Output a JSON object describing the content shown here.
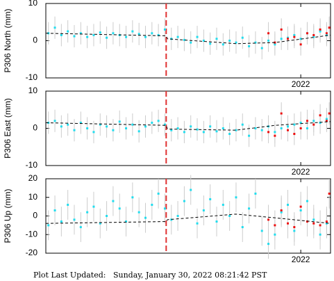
{
  "chart_data": [
    {
      "type": "scatter",
      "ylabel": "P306 North (mm)",
      "xlim": [
        2020.03,
        2022.23
      ],
      "xticks": [
        2022
      ],
      "ylim": [
        -10,
        10
      ],
      "yticks": [
        10,
        0,
        -10
      ],
      "vlines": [
        {
          "x": 2020.96,
          "color": "#e03030"
        }
      ],
      "series": [
        {
          "color": "#22ddee",
          "error": 3,
          "x": [
            2020.05,
            2020.1,
            2020.15,
            2020.2,
            2020.25,
            2020.3,
            2020.35,
            2020.4,
            2020.45,
            2020.5,
            2020.55,
            2020.6,
            2020.65,
            2020.7,
            2020.75,
            2020.8,
            2020.85,
            2020.9,
            2020.95,
            2021.0,
            2021.05,
            2021.1,
            2021.15,
            2021.2,
            2021.25,
            2021.3,
            2021.35,
            2021.4,
            2021.45,
            2021.5,
            2021.55,
            2021.6,
            2021.65,
            2021.7,
            2021.75,
            2021.8,
            2021.85,
            2021.9,
            2021.95,
            2022.0,
            2022.05,
            2022.1,
            2022.15,
            2022.2
          ],
          "values": [
            2,
            3.5,
            1.5,
            2.5,
            1.2,
            2,
            1,
            1.5,
            2.2,
            0.8,
            2,
            1.5,
            1,
            2.5,
            1.8,
            1,
            2,
            1.5,
            3,
            0.5,
            1,
            0.2,
            -0.5,
            1,
            0,
            -0.8,
            0.5,
            -1,
            0,
            -0.5,
            0.8,
            -1.5,
            -0.5,
            -2,
            0,
            -1,
            0.5,
            0.8,
            1.5,
            0.5,
            2,
            1,
            2.5,
            1.5
          ]
        },
        {
          "color": "#ee1111",
          "error": 3,
          "x": [
            2021.75,
            2021.8,
            2021.85,
            2021.9,
            2021.95,
            2022.0,
            2022.05,
            2022.1,
            2022.15,
            2022.2,
            2022.22
          ],
          "values": [
            2,
            -0.5,
            3,
            0.5,
            1,
            -1,
            2,
            1.5,
            3,
            2,
            3.5
          ]
        },
        {
          "color": "#000000",
          "style": "dashed",
          "x": [
            2020.03,
            2020.96,
            2020.97,
            2021.5,
            2021.8,
            2022.23
          ],
          "values": [
            2,
            1.3,
            0.5,
            -0.8,
            -0.5,
            1.5
          ]
        }
      ]
    },
    {
      "type": "scatter",
      "ylabel": "P306 East (mm)",
      "xlim": [
        2020.03,
        2022.23
      ],
      "xticks": [
        2022
      ],
      "ylim": [
        -10,
        10
      ],
      "yticks": [
        10,
        0,
        -10
      ],
      "vlines": [
        {
          "x": 2020.96,
          "color": "#e03030"
        }
      ],
      "series": [
        {
          "color": "#22ddee",
          "error": 3,
          "x": [
            2020.05,
            2020.1,
            2020.15,
            2020.2,
            2020.25,
            2020.3,
            2020.35,
            2020.4,
            2020.45,
            2020.5,
            2020.55,
            2020.6,
            2020.65,
            2020.7,
            2020.75,
            2020.8,
            2020.85,
            2020.9,
            2020.95,
            2021.0,
            2021.05,
            2021.1,
            2021.15,
            2021.2,
            2021.25,
            2021.3,
            2021.35,
            2021.4,
            2021.45,
            2021.5,
            2021.55,
            2021.6,
            2021.65,
            2021.7,
            2021.75,
            2021.8,
            2021.85,
            2021.9,
            2021.95,
            2022.0,
            2022.05,
            2022.1,
            2022.15,
            2022.2
          ],
          "values": [
            1.5,
            2,
            0.5,
            1,
            -0.5,
            1.5,
            0,
            -1,
            1,
            0.5,
            -0.5,
            1.8,
            0,
            1,
            -0.8,
            0.5,
            1.5,
            2,
            1,
            -0.5,
            0,
            -1,
            0.5,
            -0.3,
            -1,
            0.5,
            -0.8,
            0,
            -1.5,
            -0.5,
            1,
            -2,
            0,
            -0.5,
            0.5,
            -1,
            0,
            0.5,
            1,
            1.5,
            0,
            2,
            1.5,
            2.5
          ]
        },
        {
          "color": "#ee1111",
          "error": 3,
          "x": [
            2021.75,
            2021.8,
            2021.85,
            2021.9,
            2021.95,
            2022.0,
            2022.05,
            2022.1,
            2022.15,
            2022.2,
            2022.22
          ],
          "values": [
            -1,
            -2,
            4,
            -0.5,
            -1.5,
            0,
            2,
            1,
            3.5,
            2,
            4
          ]
        },
        {
          "color": "#000000",
          "style": "dashed",
          "x": [
            2020.03,
            2020.96,
            2020.97,
            2021.5,
            2021.8,
            2022.23
          ],
          "values": [
            1.5,
            0.8,
            -0.2,
            -0.5,
            0.8,
            1.8
          ]
        }
      ]
    },
    {
      "type": "scatter",
      "ylabel": "P306 Up (mm)",
      "xlim": [
        2020.03,
        2022.23
      ],
      "xticks": [
        2022
      ],
      "ylim": [
        -20,
        20
      ],
      "yticks": [
        20,
        10,
        0,
        -10,
        -20
      ],
      "vlines": [
        {
          "x": 2020.96,
          "color": "#e03030"
        }
      ],
      "series": [
        {
          "color": "#22ddee",
          "error": 8,
          "x": [
            2020.05,
            2020.1,
            2020.15,
            2020.2,
            2020.25,
            2020.3,
            2020.35,
            2020.4,
            2020.45,
            2020.5,
            2020.55,
            2020.6,
            2020.65,
            2020.7,
            2020.75,
            2020.8,
            2020.85,
            2020.9,
            2020.95,
            2021.0,
            2021.05,
            2021.1,
            2021.15,
            2021.2,
            2021.25,
            2021.3,
            2021.35,
            2021.4,
            2021.45,
            2021.5,
            2021.55,
            2021.6,
            2021.65,
            2021.7,
            2021.75,
            2021.8,
            2021.85,
            2021.9,
            2021.95,
            2022.0,
            2022.05,
            2022.1,
            2022.15,
            2022.2
          ],
          "values": [
            -5,
            3,
            -3,
            6,
            -2,
            -6,
            2,
            5,
            -4,
            0,
            8,
            4,
            -3,
            10,
            2,
            -1,
            6,
            12,
            4,
            -2,
            0,
            8,
            14,
            -4,
            3,
            9,
            -3,
            6,
            0,
            10,
            -6,
            4,
            12,
            -8,
            -15,
            -10,
            2,
            6,
            -8,
            3,
            8,
            -2,
            -10,
            -4
          ]
        },
        {
          "color": "#ee1111",
          "error": 8,
          "x": [
            2021.75,
            2021.8,
            2021.85,
            2021.9,
            2021.95,
            2022.0,
            2022.05,
            2022.1,
            2022.15,
            2022.2,
            2022.22
          ],
          "values": [
            -2,
            -5,
            3,
            -4,
            -6,
            5,
            -3,
            -4,
            -5,
            -3,
            12
          ]
        },
        {
          "color": "#000000",
          "style": "dashed",
          "x": [
            2020.03,
            2020.96,
            2020.97,
            2021.5,
            2021.8,
            2022.23
          ],
          "values": [
            -4,
            -3,
            -2,
            1,
            -1,
            -4
          ]
        }
      ]
    }
  ],
  "footer": "Plot Last Updated:   Sunday, January 30, 2022 08:21:42 PST"
}
